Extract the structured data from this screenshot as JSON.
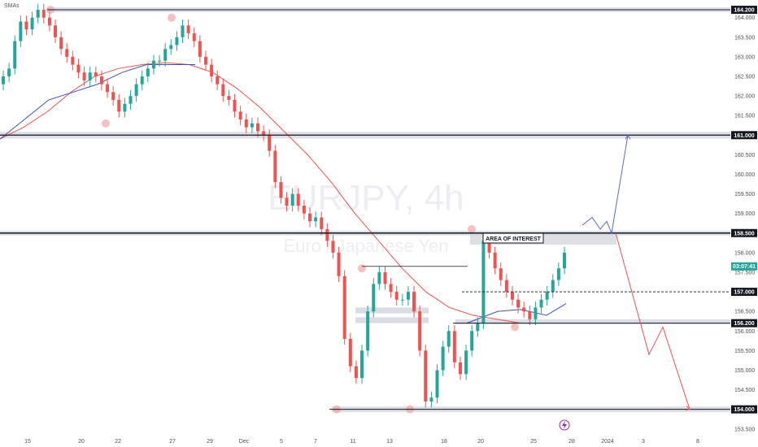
{
  "indicator_label": "SMAs",
  "colors": {
    "up": "#26a69a",
    "down": "#ef5350",
    "sma_slow": "#ef5350",
    "sma_fast": "#3f51b5",
    "zone": "#d1d4dc",
    "projection_up": "#5c6bc0",
    "projection_down": "#ef5350",
    "pivot": "#ef9a9a",
    "current_tag": "#26a69a"
  },
  "chart_data": {
    "type": "candlestick",
    "symbol": "EURJPY",
    "interval": "4h",
    "subtitle": "Euro / Japanese Yen",
    "ylim": [
      153.35,
      164.45
    ],
    "price_scale_ticks": [
      "164.000",
      "163.500",
      "163.000",
      "162.500",
      "162.000",
      "161.500",
      "161.000",
      "160.500",
      "160.000",
      "159.500",
      "159.000",
      "158.500",
      "158.000",
      "157.500",
      "157.000",
      "156.500",
      "156.000",
      "155.500",
      "155.000",
      "154.500",
      "154.000",
      "153.500"
    ],
    "x_ticks": [
      "15",
      "20",
      "22",
      "27",
      "29",
      "Dec",
      "5",
      "7",
      "11",
      "13",
      "18",
      "20",
      "25",
      "28",
      "2024",
      "3",
      "8"
    ],
    "horizontal_levels": [
      {
        "label": "164.200",
        "value": 164.2
      },
      {
        "label": "161.000",
        "value": 161.0
      },
      {
        "label": "158.500",
        "value": 158.5
      },
      {
        "label": "157.000",
        "value": 157.0
      },
      {
        "label": "156.200",
        "value": 156.2
      },
      {
        "label": "154.000",
        "value": 154.0
      }
    ],
    "current_price_tag": "03:07:41",
    "annotations": [
      {
        "text": "AREA OF INTEREST",
        "value": 158.35
      }
    ],
    "support_zones": [
      {
        "value_low": 156.45,
        "value_high": 156.6
      },
      {
        "value_low": 156.2,
        "value_high": 156.35
      }
    ],
    "series_close": [
      162.5,
      162.7,
      163.4,
      163.9,
      163.7,
      164.0,
      164.2,
      164.0,
      163.8,
      163.5,
      163.2,
      163.0,
      162.8,
      162.6,
      162.4,
      162.6,
      162.5,
      162.3,
      162.1,
      161.9,
      161.6,
      161.8,
      162.0,
      162.3,
      162.5,
      162.7,
      162.9,
      162.9,
      163.2,
      163.3,
      163.5,
      163.8,
      163.6,
      163.4,
      163.0,
      162.8,
      162.5,
      162.3,
      162.0,
      161.9,
      161.6,
      161.4,
      161.2,
      161.3,
      161.1,
      161.0,
      160.6,
      159.8,
      159.4,
      159.2,
      159.5,
      159.2,
      159.0,
      158.8,
      158.9,
      158.6,
      158.3,
      158.0,
      157.4,
      155.8,
      155.1,
      154.8,
      155.5,
      156.5,
      157.2,
      157.5,
      157.2,
      157.0,
      156.8,
      156.8,
      157.0,
      156.5,
      155.5,
      154.2,
      154.3,
      155.0,
      155.6,
      156.0,
      155.2,
      154.9,
      155.5,
      156.0,
      156.2,
      158.3,
      158.0,
      157.6,
      157.3,
      157.0,
      156.8,
      156.6,
      156.5,
      156.3,
      156.6,
      156.8,
      157.0,
      157.3,
      157.6,
      158.0
    ],
    "series_sma_slow": [
      160.9,
      161.2,
      161.6,
      162.1,
      162.5,
      162.7,
      162.8,
      162.85,
      162.8,
      162.6,
      162.2,
      161.7,
      161.1,
      160.5,
      159.8,
      159.0,
      158.3,
      157.6,
      157.0,
      156.6,
      156.4,
      156.3,
      156.2
    ],
    "series_sma_fast": [
      160.9,
      161.4,
      161.9,
      162.1,
      162.3,
      162.6,
      162.8,
      162.8,
      162.8
    ],
    "projection_up_values": [
      158.7,
      158.9,
      158.6,
      158.8,
      158.5,
      161.0
    ],
    "projection_down_values": [
      158.5,
      155.4,
      156.1,
      154.0
    ]
  }
}
